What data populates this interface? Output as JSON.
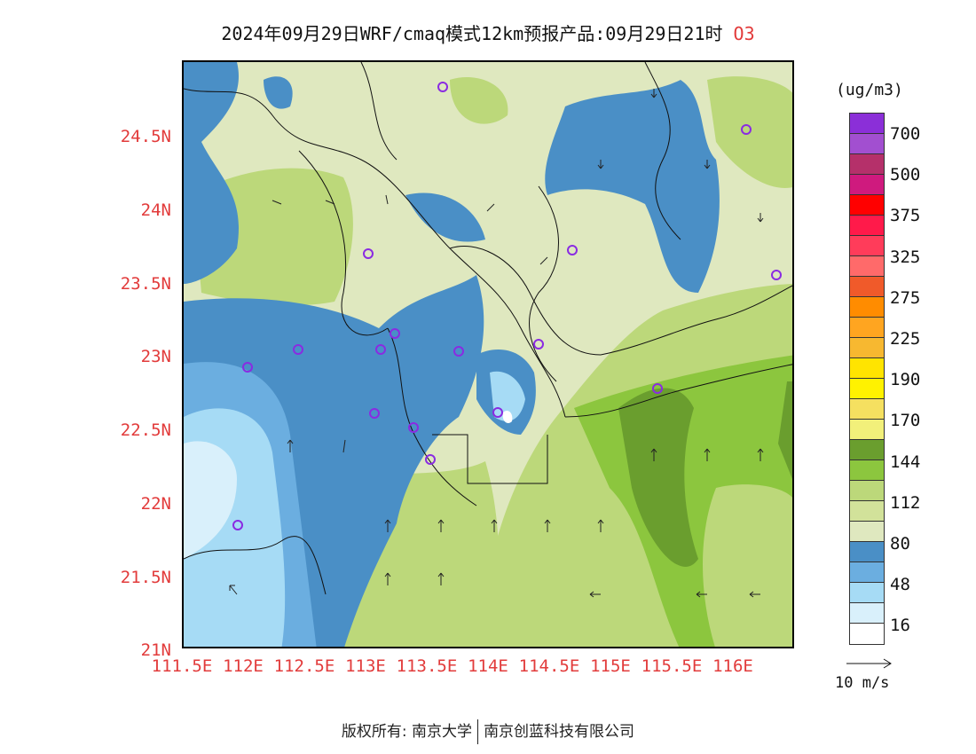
{
  "title": {
    "text": "2024年09月29日WRF/cmaq模式12km预报产品:09月29日21时",
    "species": "O3"
  },
  "axes": {
    "y_ticks": [
      "24.5N",
      "24N",
      "23.5N",
      "23N",
      "22.5N",
      "22N",
      "21.5N",
      "21N"
    ],
    "x_ticks": [
      "111.5E",
      "112E",
      "112.5E",
      "113E",
      "113.5E",
      "114E",
      "114.5E",
      "115E",
      "115.5E",
      "116E"
    ]
  },
  "colorbar": {
    "unit": "(ug/m3)",
    "labels": [
      "700",
      "500",
      "375",
      "325",
      "275",
      "225",
      "190",
      "170",
      "144",
      "112",
      "80",
      "48",
      "16"
    ],
    "colors": [
      "#8b2fd8",
      "#a24fd0",
      "#b5306a",
      "#cf1a7e",
      "#ff0000",
      "#ff1a4a",
      "#ff3c5a",
      "#ff6a6a",
      "#f05a2a",
      "#ff8c00",
      "#ffa520",
      "#f7b830",
      "#ffe400",
      "#fff200",
      "#f5e060",
      "#f2f07a",
      "#6a9e2e",
      "#8cc63e",
      "#bcd87a",
      "#d2e29a",
      "#dfe8bf",
      "#4a8fc6",
      "#6baee0",
      "#a6dbf5",
      "#d9f0fb",
      "#ffffff"
    ]
  },
  "wind_reference": {
    "label": "10 m/s"
  },
  "footer": {
    "left": "版权所有: 南京大学",
    "right": "南京创蓝科技有限公司"
  }
}
